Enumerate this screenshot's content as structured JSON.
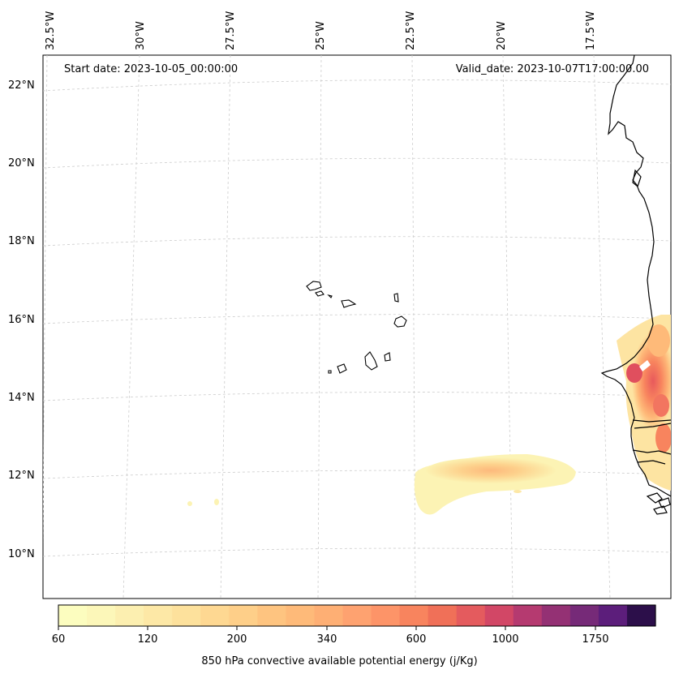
{
  "map": {
    "start_date": "Start date: 2023-10-05_00:00:00",
    "valid_date": "Valid_date: 2023-10-07T17:00:00.00",
    "lon_labels": [
      "32.5°W",
      "30°W",
      "27.5°W",
      "25°W",
      "22.5°W",
      "20°W",
      "17.5°W"
    ],
    "lat_labels": [
      "22°N",
      "20°N",
      "18°N",
      "16°N",
      "14°N",
      "12°N",
      "10°N"
    ],
    "features": {
      "coastline": "West Africa coast (Mauritania, Senegal, Gambia, Guinea-Bissau)",
      "islands": "Cape Verde islands"
    },
    "field": "850 hPa convective available potential energy",
    "high_cape_regions": [
      "Senegal interior",
      "Ocean band near 12°N, 22.5°W–18.5°W"
    ]
  },
  "colorbar": {
    "label": "850 hPa convective available potential energy (j/Kg)",
    "tick_labels": [
      "60",
      "120",
      "200",
      "340",
      "600",
      "1000",
      "1750"
    ],
    "colors": [
      "#fcfdbf",
      "#fcf7b9",
      "#fcefb0",
      "#fde8a6",
      "#fde19c",
      "#fed892",
      "#fecf89",
      "#fec480",
      "#feba79",
      "#feaf74",
      "#fea270",
      "#fd9468",
      "#f8845e",
      "#f07058",
      "#e45b5e",
      "#d24766",
      "#b53a70",
      "#943174",
      "#762a78",
      "#5c1e7b",
      "#2c0f4a"
    ]
  }
}
